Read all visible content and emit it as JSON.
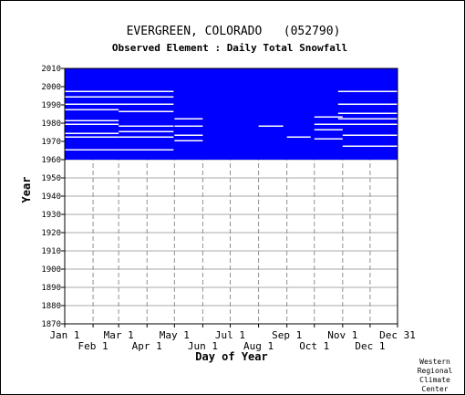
{
  "chart_data": {
    "type": "heatmap",
    "title": "EVERGREEN, COLORADO   (052790)",
    "subtitle": "Observed Element : Daily Total Snowfall",
    "xlabel": "Day of Year",
    "ylabel": "Year",
    "xlim": [
      1,
      365
    ],
    "ylim": [
      1870,
      2010
    ],
    "grid": true,
    "x_ticks_upper": [
      {
        "label": "Jan 1",
        "day": 1
      },
      {
        "label": "Mar 1",
        "day": 60
      },
      {
        "label": "May 1",
        "day": 121
      },
      {
        "label": "Jul 1",
        "day": 182
      },
      {
        "label": "Sep 1",
        "day": 244
      },
      {
        "label": "Nov 1",
        "day": 305
      },
      {
        "label": "Dec 31",
        "day": 365
      }
    ],
    "x_ticks_lower": [
      {
        "label": "Feb 1",
        "day": 32
      },
      {
        "label": "Apr 1",
        "day": 91
      },
      {
        "label": "Jun 1",
        "day": 152
      },
      {
        "label": "Aug 1",
        "day": 213
      },
      {
        "label": "Oct 1",
        "day": 274
      },
      {
        "label": "Dec 1",
        "day": 335
      }
    ],
    "y_ticks": [
      1870,
      1880,
      1890,
      1900,
      1910,
      1920,
      1930,
      1940,
      1950,
      1960,
      1970,
      1980,
      1990,
      2000,
      2010
    ],
    "data_color": "#0000ff",
    "data_extent": {
      "day_start": 1,
      "day_end": 365,
      "year_start": 1960,
      "year_end": 2010
    },
    "missing_gaps": [
      {
        "day_start": 1,
        "day_end": 120,
        "year_start": 1994,
        "year_end": 1995
      },
      {
        "day_start": 1,
        "day_end": 120,
        "year_start": 1990,
        "year_end": 1991
      },
      {
        "day_start": 1,
        "day_end": 60,
        "year_start": 1987,
        "year_end": 1988
      },
      {
        "day_start": 1,
        "day_end": 60,
        "year_start": 1981,
        "year_end": 1982
      },
      {
        "day_start": 1,
        "day_end": 60,
        "year_start": 1979,
        "year_end": 1980
      },
      {
        "day_start": 1,
        "day_end": 60,
        "year_start": 1974,
        "year_end": 1975
      },
      {
        "day_start": 1,
        "day_end": 60,
        "year_start": 1972,
        "year_end": 1973
      },
      {
        "day_start": 60,
        "day_end": 120,
        "year_start": 1986,
        "year_end": 1987
      },
      {
        "day_start": 60,
        "day_end": 120,
        "year_start": 1978,
        "year_end": 1979
      },
      {
        "day_start": 60,
        "day_end": 120,
        "year_start": 1975,
        "year_end": 1976
      },
      {
        "day_start": 60,
        "day_end": 120,
        "year_start": 1972,
        "year_end": 1973
      },
      {
        "day_start": 1,
        "day_end": 120,
        "year_start": 1965,
        "year_end": 1966
      },
      {
        "day_start": 121,
        "day_end": 152,
        "year_start": 1982,
        "year_end": 1983
      },
      {
        "day_start": 121,
        "day_end": 152,
        "year_start": 1978,
        "year_end": 1979
      },
      {
        "day_start": 121,
        "day_end": 152,
        "year_start": 1973,
        "year_end": 1974
      },
      {
        "day_start": 121,
        "day_end": 152,
        "year_start": 1970,
        "year_end": 1971
      },
      {
        "day_start": 274,
        "day_end": 305,
        "year_start": 1983,
        "year_end": 1984
      },
      {
        "day_start": 274,
        "day_end": 305,
        "year_start": 1979,
        "year_end": 1980
      },
      {
        "day_start": 274,
        "day_end": 305,
        "year_start": 1976,
        "year_end": 1977
      },
      {
        "day_start": 274,
        "day_end": 305,
        "year_start": 1971,
        "year_end": 1972
      },
      {
        "day_start": 300,
        "day_end": 365,
        "year_start": 1990,
        "year_end": 1991
      },
      {
        "day_start": 300,
        "day_end": 365,
        "year_start": 1985,
        "year_end": 1986
      },
      {
        "day_start": 300,
        "day_end": 365,
        "year_start": 1982,
        "year_end": 1983
      },
      {
        "day_start": 300,
        "day_end": 365,
        "year_start": 1979,
        "year_end": 1980
      },
      {
        "day_start": 305,
        "day_end": 365,
        "year_start": 1973,
        "year_end": 1974
      },
      {
        "day_start": 305,
        "day_end": 365,
        "year_start": 1967,
        "year_end": 1968
      },
      {
        "day_start": 244,
        "day_end": 270,
        "year_start": 1972,
        "year_end": 1973
      },
      {
        "day_start": 213,
        "day_end": 240,
        "year_start": 1978,
        "year_end": 1979
      },
      {
        "day_start": 1,
        "day_end": 120,
        "year_start": 1997,
        "year_end": 1998
      },
      {
        "day_start": 300,
        "day_end": 365,
        "year_start": 1997,
        "year_end": 1998
      }
    ],
    "credit": [
      "Western",
      "Regional",
      "Climate",
      "Center"
    ]
  }
}
